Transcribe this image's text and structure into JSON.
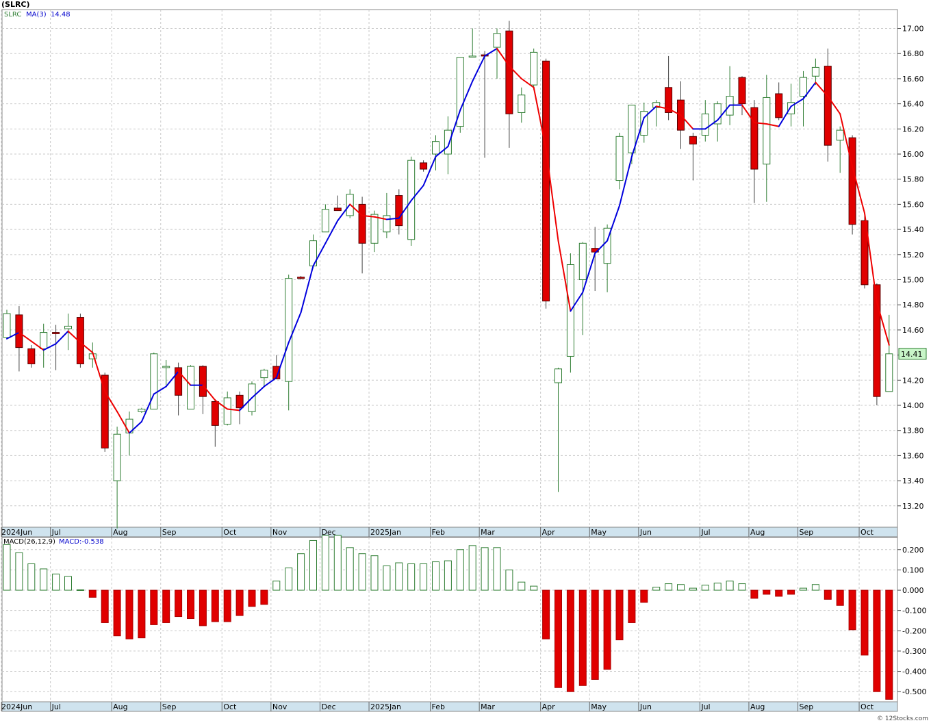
{
  "header": {
    "symbol": "(SLRC)"
  },
  "price_panel": {
    "ticker_label": "SLRC",
    "ma_label": "MA(3)",
    "ma_value": "14.48",
    "last_price_badge": "14.41",
    "colors": {
      "up": "#2e7d32",
      "down": "#e00000",
      "ma_up": "#0000dd",
      "ma_down": "#ee0000",
      "grid": "#c8c8c8",
      "axis_bar": "#cfe3ee"
    }
  },
  "macd_panel": {
    "label": "MACD(26,12,9)",
    "value_label": "MACD:-0.538"
  },
  "credit": "© 12Stocks.com",
  "chart_data": [
    {
      "type": "candlestick",
      "title": "(SLRC)",
      "interval": "weekly",
      "x_labels": [
        "2024Jun",
        "Jul",
        "Aug",
        "Sep",
        "Oct",
        "Nov",
        "Dec",
        "2025Jan",
        "Feb",
        "Mar",
        "Apr",
        "May",
        "Jun",
        "Jul",
        "Aug",
        "Sep",
        "Oct"
      ],
      "x_label_bar_index": [
        0,
        4,
        9,
        13,
        18,
        22,
        26,
        30,
        35,
        39,
        44,
        48,
        52,
        57,
        61,
        65,
        70
      ],
      "y_ticks": [
        13.2,
        13.4,
        13.6,
        13.8,
        14.0,
        14.2,
        14.4,
        14.6,
        14.8,
        15.0,
        15.2,
        15.4,
        15.6,
        15.8,
        16.0,
        16.2,
        16.4,
        16.6,
        16.8,
        17.0
      ],
      "y_tick_labels": [
        "13.20",
        "13.40",
        "13.60",
        "13.80",
        "14.00",
        "14.20",
        "14.40",
        "14.60",
        "14.80",
        "15.00",
        "15.20",
        "15.40",
        "15.60",
        "15.80",
        "16.00",
        "16.20",
        "16.40",
        "16.60",
        "16.80",
        "17.00"
      ],
      "ylim": [
        13.03,
        17.15
      ],
      "ohlc": [
        [
          14.54,
          14.76,
          14.53,
          14.73
        ],
        [
          14.72,
          14.79,
          14.27,
          14.46
        ],
        [
          14.45,
          14.48,
          14.3,
          14.33
        ],
        [
          14.45,
          14.65,
          14.3,
          14.58
        ],
        [
          14.58,
          14.64,
          14.28,
          14.57
        ],
        [
          14.61,
          14.73,
          14.44,
          14.63
        ],
        [
          14.7,
          14.73,
          14.3,
          14.33
        ],
        [
          14.37,
          14.5,
          14.3,
          14.41
        ],
        [
          14.24,
          14.26,
          13.63,
          13.66
        ],
        [
          13.4,
          13.83,
          13.02,
          13.77
        ],
        [
          13.78,
          13.95,
          13.6,
          13.89
        ],
        [
          13.95,
          13.98,
          13.94,
          13.97
        ],
        [
          13.97,
          14.42,
          13.97,
          14.41
        ],
        [
          14.3,
          14.36,
          14.16,
          14.31
        ],
        [
          14.3,
          14.34,
          13.92,
          14.08
        ],
        [
          13.97,
          14.32,
          13.97,
          14.31
        ],
        [
          14.31,
          14.32,
          13.93,
          14.07
        ],
        [
          14.03,
          14.05,
          13.67,
          13.84
        ],
        [
          13.85,
          14.11,
          13.84,
          14.06
        ],
        [
          14.08,
          14.11,
          13.85,
          13.98
        ],
        [
          13.95,
          14.19,
          13.92,
          14.17
        ],
        [
          14.22,
          14.29,
          14.15,
          14.28
        ],
        [
          14.31,
          14.4,
          14.21,
          14.21
        ],
        [
          14.19,
          15.04,
          13.96,
          15.01
        ],
        [
          15.02,
          15.03,
          15.0,
          15.01
        ],
        [
          15.11,
          15.36,
          15.09,
          15.31
        ],
        [
          15.38,
          15.6,
          15.38,
          15.56
        ],
        [
          15.57,
          15.67,
          15.56,
          15.55
        ],
        [
          15.51,
          15.72,
          15.49,
          15.68
        ],
        [
          15.6,
          15.66,
          15.05,
          15.29
        ],
        [
          15.29,
          15.55,
          15.22,
          15.52
        ],
        [
          15.38,
          15.69,
          15.33,
          15.51
        ],
        [
          15.67,
          15.72,
          15.36,
          15.43
        ],
        [
          15.32,
          15.98,
          15.27,
          15.95
        ],
        [
          15.93,
          15.95,
          15.86,
          15.88
        ],
        [
          16.0,
          16.15,
          15.87,
          16.1
        ],
        [
          16.0,
          16.3,
          15.84,
          16.19
        ],
        [
          16.22,
          16.76,
          16.17,
          16.77
        ],
        [
          16.78,
          17.0,
          16.77,
          16.78
        ],
        [
          16.79,
          16.82,
          15.97,
          16.78
        ],
        [
          16.85,
          17.0,
          16.6,
          16.96
        ],
        [
          16.98,
          17.06,
          16.05,
          16.32
        ],
        [
          16.33,
          16.53,
          16.25,
          16.47
        ],
        [
          16.55,
          16.84,
          16.51,
          16.81
        ],
        [
          16.74,
          16.76,
          14.77,
          14.83
        ],
        [
          14.18,
          14.3,
          13.31,
          14.29
        ],
        [
          14.39,
          15.21,
          14.26,
          15.12
        ],
        [
          15.0,
          15.3,
          14.56,
          15.29
        ],
        [
          15.25,
          15.42,
          14.91,
          15.22
        ],
        [
          15.13,
          15.44,
          14.9,
          15.41
        ],
        [
          15.79,
          16.17,
          15.72,
          16.14
        ],
        [
          16.01,
          16.39,
          15.92,
          16.39
        ],
        [
          16.15,
          16.41,
          16.09,
          16.34
        ],
        [
          16.37,
          16.43,
          16.22,
          16.41
        ],
        [
          16.53,
          16.78,
          16.27,
          16.33
        ],
        [
          16.43,
          16.58,
          16.04,
          16.19
        ],
        [
          16.14,
          16.17,
          15.79,
          16.08
        ],
        [
          16.15,
          16.43,
          16.1,
          16.32
        ],
        [
          16.24,
          16.42,
          16.1,
          16.4
        ],
        [
          16.31,
          16.7,
          16.23,
          16.46
        ],
        [
          16.61,
          16.62,
          16.31,
          16.4
        ],
        [
          16.37,
          16.43,
          15.61,
          15.88
        ],
        [
          15.92,
          16.63,
          15.62,
          16.45
        ],
        [
          16.48,
          16.57,
          16.27,
          16.29
        ],
        [
          16.32,
          16.56,
          16.22,
          16.41
        ],
        [
          16.46,
          16.66,
          16.22,
          16.61
        ],
        [
          16.62,
          16.76,
          16.55,
          16.69
        ],
        [
          16.7,
          16.84,
          15.94,
          16.07
        ],
        [
          16.11,
          16.22,
          15.85,
          16.19
        ],
        [
          16.13,
          16.15,
          15.36,
          15.44
        ],
        [
          15.47,
          15.54,
          14.93,
          14.96
        ],
        [
          14.96,
          14.97,
          14.0,
          14.07
        ],
        [
          14.11,
          14.72,
          14.11,
          14.41
        ]
      ],
      "ma3": [
        14.53,
        14.58,
        14.51,
        14.44,
        14.49,
        14.59,
        14.5,
        14.42,
        14.11,
        13.95,
        13.78,
        13.87,
        14.09,
        14.15,
        14.27,
        14.16,
        14.16,
        14.04,
        13.97,
        13.96,
        14.06,
        14.15,
        14.22,
        14.5,
        14.74,
        15.11,
        15.29,
        15.47,
        15.6,
        15.51,
        15.5,
        15.48,
        15.49,
        15.63,
        15.75,
        15.98,
        16.06,
        16.35,
        16.58,
        16.78,
        16.84,
        16.7,
        16.6,
        16.53,
        16.04,
        15.31,
        14.75,
        14.9,
        15.21,
        15.31,
        15.59,
        15.98,
        16.29,
        16.38,
        16.36,
        16.31,
        16.2,
        16.2,
        16.27,
        16.39,
        16.39,
        16.25,
        16.24,
        16.22,
        16.38,
        16.44,
        16.57,
        16.46,
        16.32,
        15.9,
        15.53,
        14.82,
        14.48
      ]
    },
    {
      "type": "bar",
      "title": "MACD(26,12,9)",
      "y_ticks": [
        -0.5,
        -0.4,
        -0.3,
        -0.2,
        -0.1,
        0.0,
        0.1,
        0.2
      ],
      "y_tick_labels": [
        "-0.500",
        "-0.400",
        "-0.300",
        "-0.200",
        "-0.100",
        "0.000",
        "0.100",
        "0.200"
      ],
      "ylim": [
        -0.55,
        0.26
      ],
      "values": [
        0.225,
        0.185,
        0.13,
        0.105,
        0.08,
        0.068,
        0.002,
        -0.035,
        -0.16,
        -0.225,
        -0.24,
        -0.235,
        -0.17,
        -0.16,
        -0.13,
        -0.14,
        -0.175,
        -0.155,
        -0.155,
        -0.125,
        -0.08,
        -0.07,
        0.045,
        0.11,
        0.18,
        0.245,
        0.27,
        0.27,
        0.21,
        0.18,
        0.17,
        0.12,
        0.135,
        0.13,
        0.13,
        0.14,
        0.145,
        0.2,
        0.22,
        0.21,
        0.21,
        0.1,
        0.04,
        0.02,
        -0.24,
        -0.48,
        -0.5,
        -0.47,
        -0.44,
        -0.39,
        -0.245,
        -0.16,
        -0.06,
        0.015,
        0.032,
        0.028,
        0.01,
        0.025,
        0.035,
        0.045,
        0.032,
        -0.04,
        -0.02,
        -0.03,
        -0.02,
        0.01,
        0.028,
        -0.045,
        -0.075,
        -0.195,
        -0.32,
        -0.5,
        -0.538
      ]
    }
  ]
}
